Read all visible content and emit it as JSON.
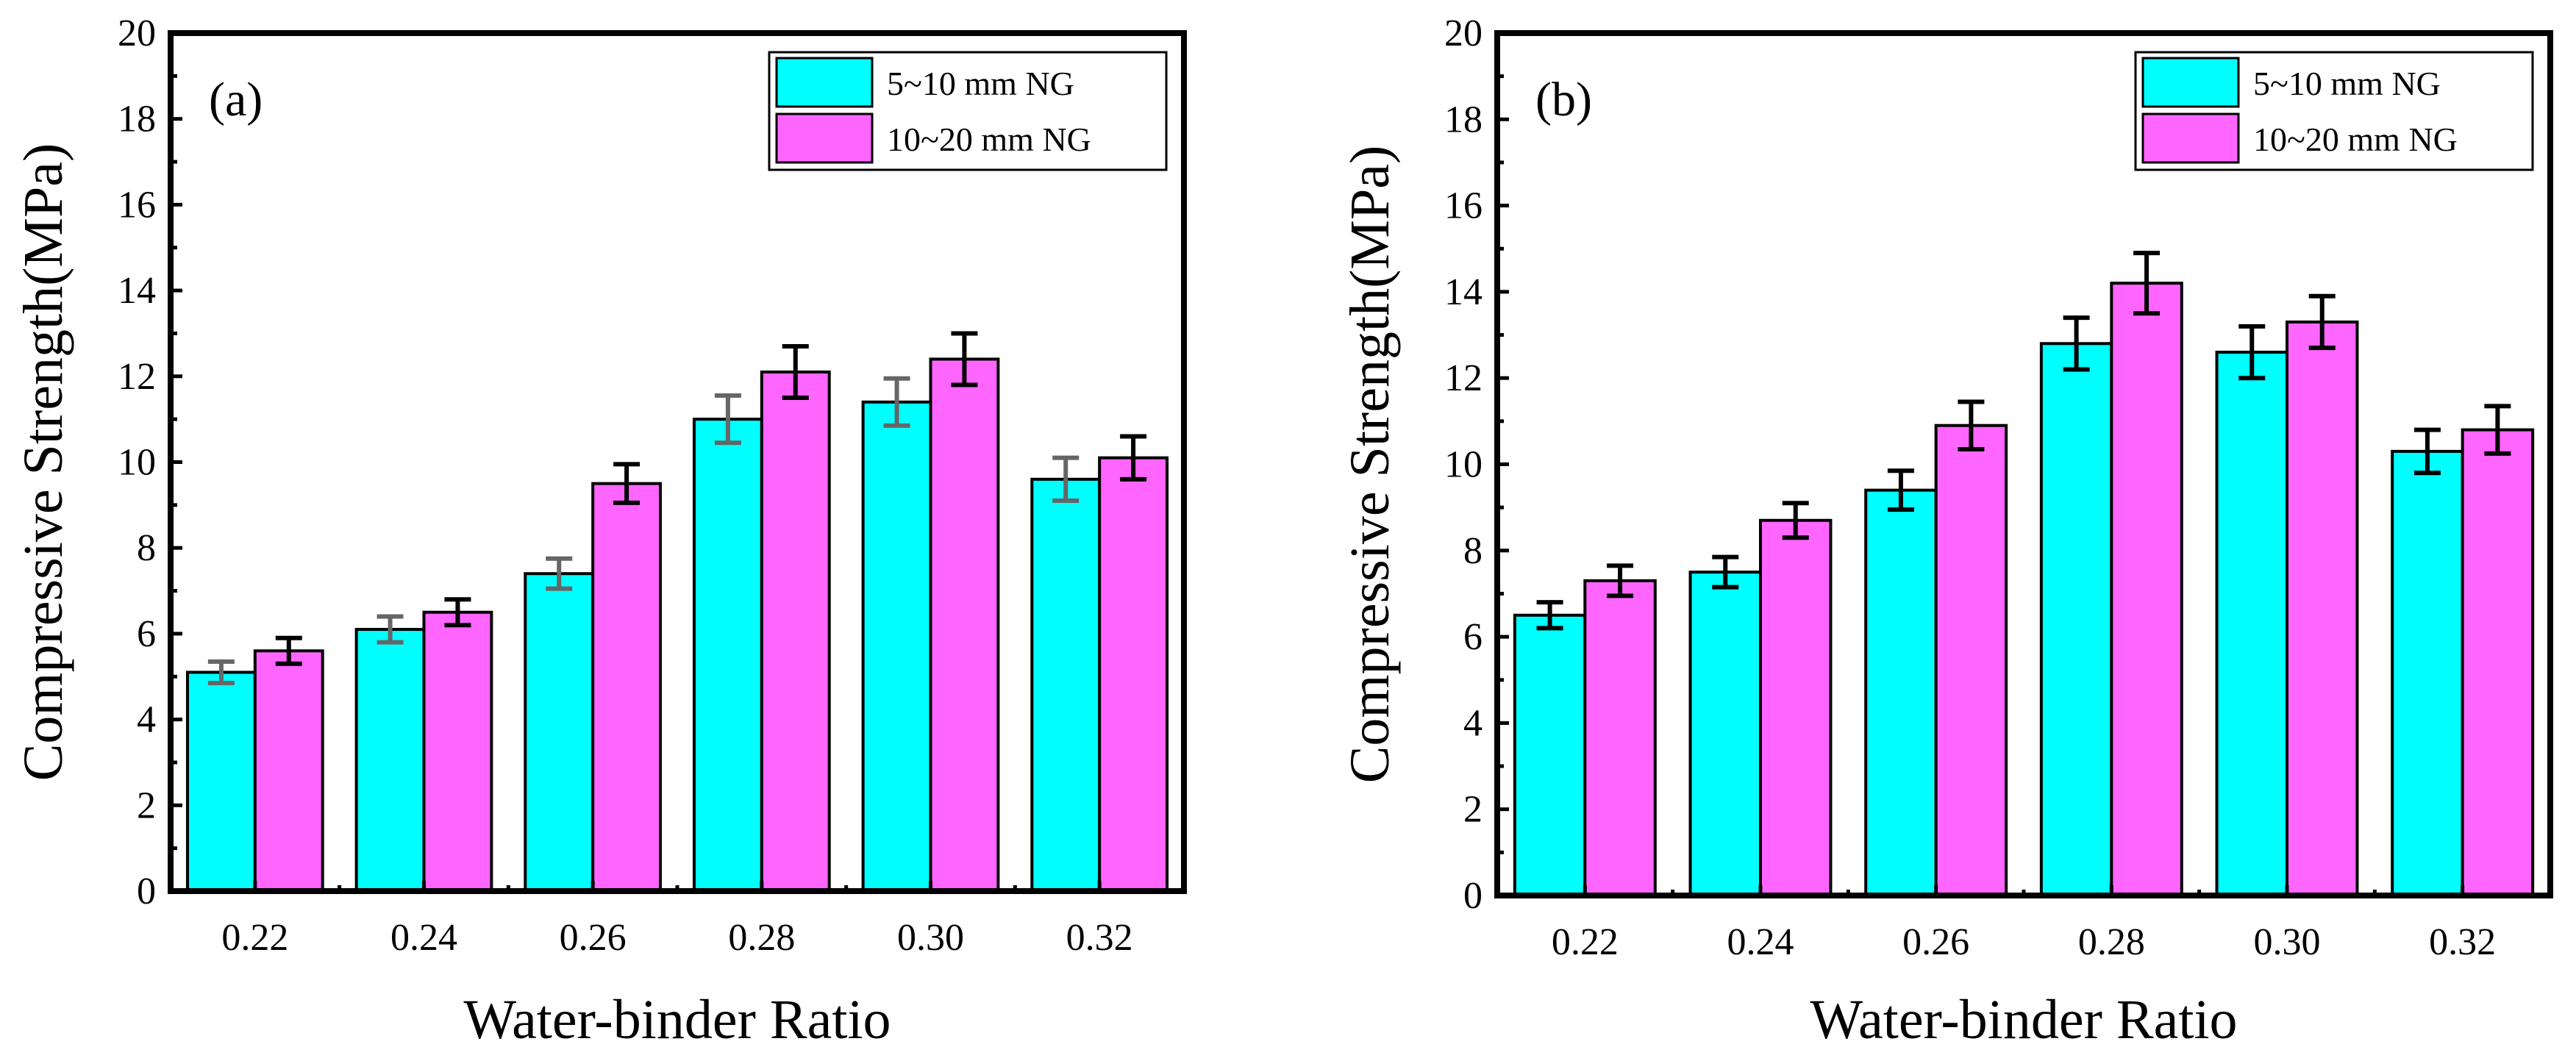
{
  "chart_data": [
    {
      "type": "bar",
      "panel_label": "(a)",
      "categories": [
        "0.22",
        "0.24",
        "0.26",
        "0.28",
        "0.30",
        "0.32"
      ],
      "series": [
        {
          "name": "5~10 mm NG",
          "color": "#00FFFF",
          "error_color": "#666666",
          "values": [
            5.1,
            6.1,
            7.4,
            11.0,
            11.4,
            9.6
          ],
          "errors": [
            0.25,
            0.3,
            0.35,
            0.55,
            0.55,
            0.5
          ]
        },
        {
          "name": "10~20 mm NG",
          "color": "#FF66FF",
          "error_color": "#000000",
          "values": [
            5.6,
            6.5,
            9.5,
            12.1,
            12.4,
            10.1
          ],
          "errors": [
            0.3,
            0.3,
            0.45,
            0.6,
            0.6,
            0.5
          ]
        }
      ],
      "xlabel": "Water-binder Ratio",
      "ylabel": "Compressive Strength(MPa)",
      "ylim": [
        0,
        20
      ],
      "yticks": [
        0,
        2,
        4,
        6,
        8,
        10,
        12,
        14,
        16,
        18,
        20
      ],
      "legend_position": "top-right",
      "grid": false
    },
    {
      "type": "bar",
      "panel_label": "(b)",
      "categories": [
        "0.22",
        "0.24",
        "0.26",
        "0.28",
        "0.30",
        "0.32"
      ],
      "series": [
        {
          "name": "5~10 mm NG",
          "color": "#00FFFF",
          "error_color": "#000000",
          "values": [
            6.5,
            7.5,
            9.4,
            12.8,
            12.6,
            10.3
          ],
          "errors": [
            0.3,
            0.35,
            0.45,
            0.6,
            0.6,
            0.5
          ]
        },
        {
          "name": "10~20 mm NG",
          "color": "#FF66FF",
          "error_color": "#000000",
          "values": [
            7.3,
            8.7,
            10.9,
            14.2,
            13.3,
            10.8
          ],
          "errors": [
            0.35,
            0.4,
            0.55,
            0.7,
            0.6,
            0.55
          ]
        }
      ],
      "xlabel": "Water-binder Ratio",
      "ylabel": "Compressive Strength(MPa)",
      "ylim": [
        0,
        20
      ],
      "yticks": [
        0,
        2,
        4,
        6,
        8,
        10,
        12,
        14,
        16,
        18,
        20
      ],
      "legend_position": "top-right",
      "grid": false
    }
  ]
}
